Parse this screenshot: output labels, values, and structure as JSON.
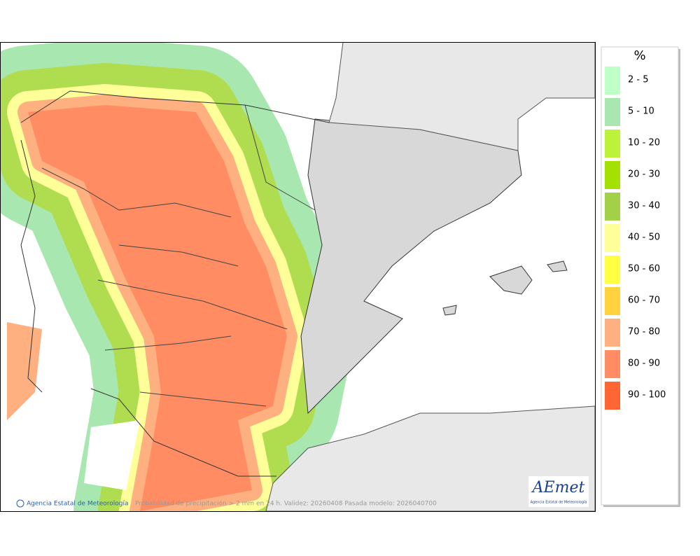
{
  "map": {
    "footer_credit": "Agencia Estatal de Meteorología",
    "footer_caption": "Probabilidad de precipitación > 2 mm en 24 h. Validez: 20260408 Pasada modelo: 2026040700",
    "logo": {
      "name": "AEmet",
      "subtitle": "Agencia Estatal de Meteorología"
    }
  },
  "legend": {
    "title": "%",
    "entries": [
      {
        "label": "2 - 5",
        "color": "#bfffc8"
      },
      {
        "label": "5 - 10",
        "color": "#a8e6b2"
      },
      {
        "label": "10 - 20",
        "color": "#bdf23a"
      },
      {
        "label": "20 - 30",
        "color": "#a4e000"
      },
      {
        "label": "30 - 40",
        "color": "#a2d046"
      },
      {
        "label": "40 - 50",
        "color": "#ffff99"
      },
      {
        "label": "50 - 60",
        "color": "#ffff44"
      },
      {
        "label": "60 - 70",
        "color": "#ffd23e"
      },
      {
        "label": "70 - 80",
        "color": "#ffb080"
      },
      {
        "label": "80 - 90",
        "color": "#ff8c62"
      },
      {
        "label": "90 - 100",
        "color": "#ff6633"
      }
    ]
  }
}
